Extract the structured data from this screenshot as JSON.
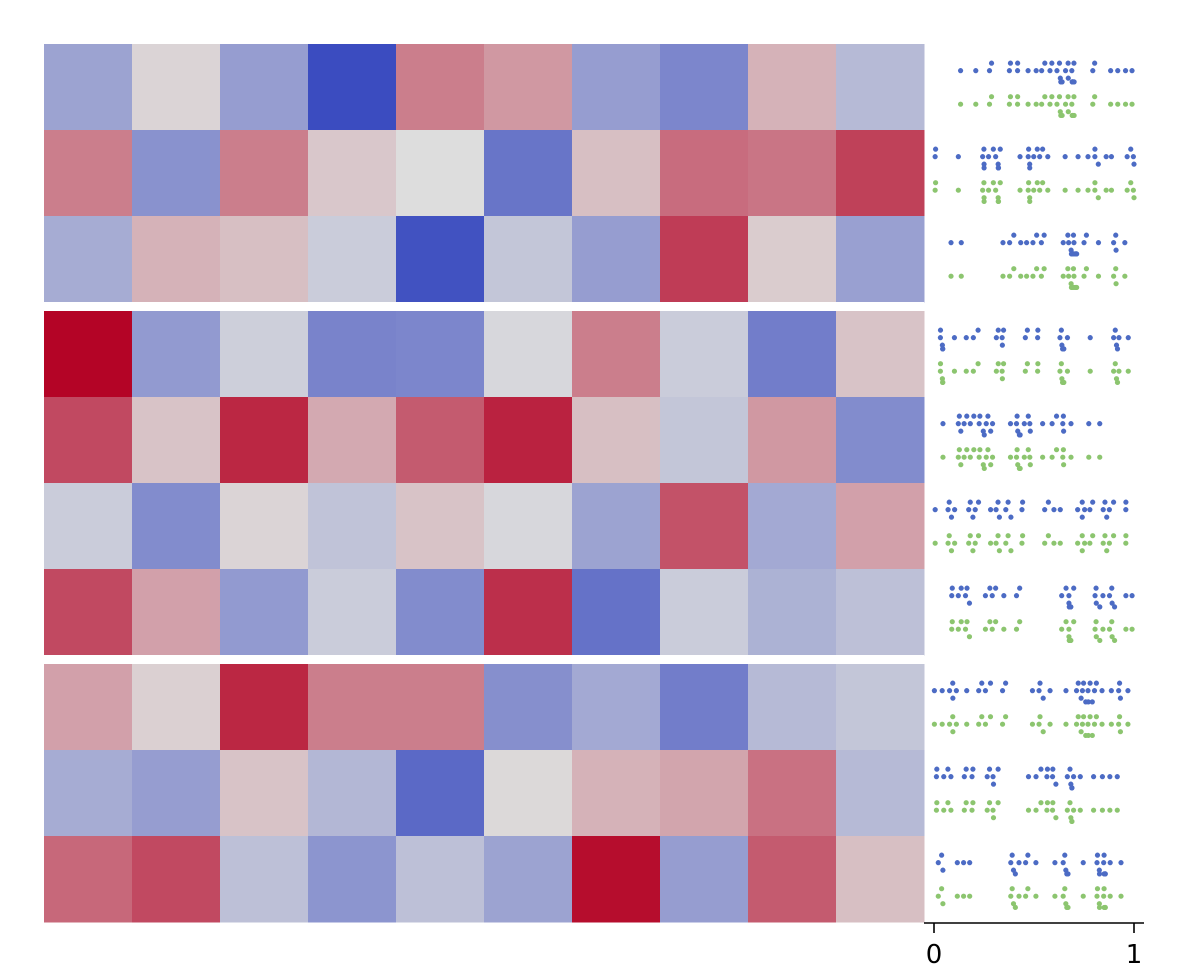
{
  "chart_data": {
    "type": "heatmap",
    "title": "",
    "xlabel": "",
    "ylabel": "",
    "n_columns": 10,
    "colormap": "coolwarm",
    "colormap_stops": [
      "#3b4cc0",
      "#dddddd",
      "#b40426"
    ],
    "value_range": [
      0,
      1
    ],
    "row_groups": [
      {
        "name": "",
        "rows": [
          [
            0.3,
            0.52,
            0.28,
            0.0,
            0.72,
            0.66,
            0.28,
            0.2,
            0.6,
            0.38
          ],
          [
            0.72,
            0.24,
            0.72,
            0.55,
            0.5,
            0.14,
            0.57,
            0.76,
            0.74,
            0.86
          ],
          [
            0.33,
            0.6,
            0.57,
            0.44,
            0.02,
            0.42,
            0.28,
            0.87,
            0.54,
            0.29
          ]
        ]
      },
      {
        "name": "",
        "rows": [
          [
            1.0,
            0.27,
            0.45,
            0.19,
            0.2,
            0.48,
            0.72,
            0.44,
            0.17,
            0.56
          ],
          [
            0.84,
            0.56,
            0.92,
            0.62,
            0.8,
            0.93,
            0.57,
            0.42,
            0.66,
            0.22
          ],
          [
            0.44,
            0.22,
            0.52,
            0.41,
            0.56,
            0.48,
            0.3,
            0.82,
            0.32,
            0.64
          ],
          [
            0.84,
            0.64,
            0.27,
            0.44,
            0.22,
            0.9,
            0.13,
            0.44,
            0.35,
            0.4
          ]
        ]
      },
      {
        "name": "",
        "rows": [
          [
            0.64,
            0.53,
            0.92,
            0.72,
            0.72,
            0.23,
            0.32,
            0.17,
            0.38,
            0.42
          ],
          [
            0.33,
            0.28,
            0.56,
            0.37,
            0.1,
            0.51,
            0.6,
            0.63,
            0.75,
            0.38
          ],
          [
            0.77,
            0.84,
            0.4,
            0.25,
            0.4,
            0.3,
            0.98,
            0.28,
            0.8,
            0.57
          ]
        ]
      }
    ],
    "side_panel": {
      "type": "swarm",
      "series": [
        {
          "color": "#4c6bc4"
        },
        {
          "color": "#8cc56f"
        }
      ],
      "xlim": [
        0,
        1
      ],
      "xticks": [
        0,
        1
      ],
      "xtick_labels": [
        "0",
        "1"
      ]
    }
  }
}
